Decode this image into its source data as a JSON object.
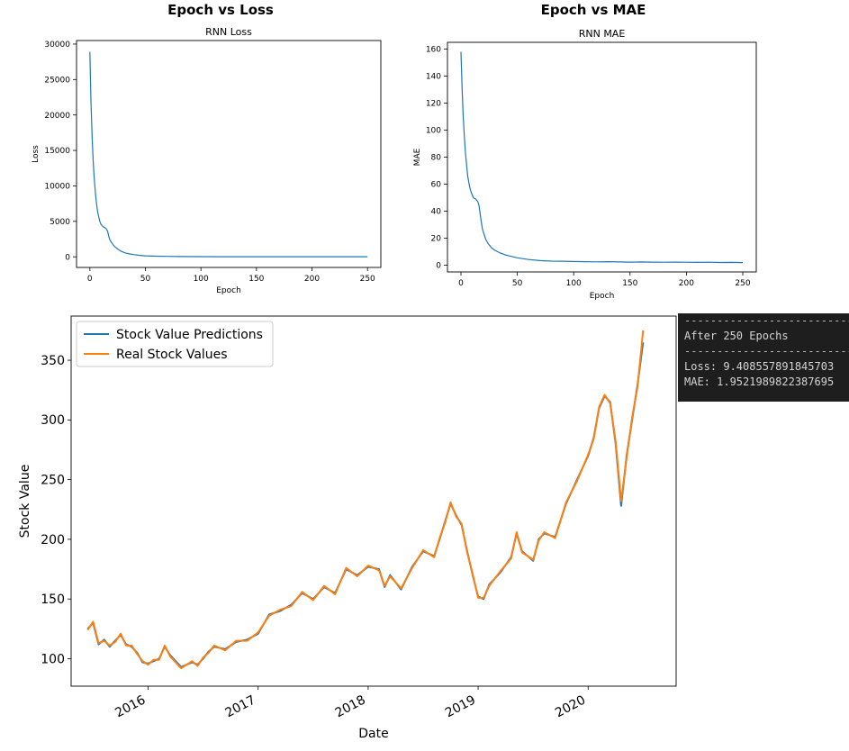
{
  "section_titles": {
    "loss": "Epoch vs Loss",
    "mae": "Epoch vs MAE"
  },
  "terminal": {
    "separator": "------------------------------------------",
    "header": "After 250 Epochs",
    "loss_line": "Loss: 9.408557891845703",
    "mae_line": "MAE: 1.9521989822387695"
  },
  "chart_data": [
    {
      "type": "line",
      "title": "RNN Loss",
      "xlabel": "Epoch",
      "ylabel": "Loss",
      "xlim": [
        -12,
        262
      ],
      "ylim": [
        -1500,
        30500
      ],
      "xticks": [
        0,
        50,
        100,
        150,
        200,
        250
      ],
      "yticks": [
        0,
        5000,
        10000,
        15000,
        20000,
        25000,
        30000
      ],
      "grid": false,
      "color": "#1f77b4",
      "series": [
        {
          "x": [
            0,
            1,
            2,
            3,
            4,
            5,
            6,
            7,
            8,
            9,
            10,
            11,
            12,
            13,
            14,
            15,
            16,
            17,
            18,
            20,
            22,
            25,
            28,
            32,
            36,
            40,
            45,
            50,
            60,
            70,
            80,
            100,
            120,
            150,
            200,
            250
          ],
          "y": [
            28900,
            22000,
            17000,
            13500,
            11000,
            9000,
            7500,
            6400,
            5600,
            5000,
            4600,
            4400,
            4250,
            4150,
            4050,
            3900,
            3600,
            2900,
            2400,
            1900,
            1500,
            1100,
            800,
            550,
            400,
            300,
            200,
            140,
            90,
            60,
            40,
            20,
            15,
            10,
            10,
            9.4
          ]
        }
      ]
    },
    {
      "type": "line",
      "title": "RNN MAE",
      "xlabel": "Epoch",
      "ylabel": "MAE",
      "xlim": [
        -12,
        262
      ],
      "ylim": [
        -5,
        165
      ],
      "xticks": [
        0,
        50,
        100,
        150,
        200,
        250
      ],
      "yticks": [
        0,
        20,
        40,
        60,
        80,
        100,
        120,
        140,
        160
      ],
      "grid": false,
      "color": "#1f77b4",
      "series": [
        {
          "x": [
            0,
            1,
            2,
            3,
            4,
            5,
            6,
            7,
            8,
            9,
            10,
            11,
            12,
            13,
            14,
            15,
            16,
            17,
            18,
            19,
            20,
            22,
            24,
            27,
            30,
            35,
            40,
            45,
            50,
            60,
            70,
            80,
            90,
            100,
            110,
            120,
            130,
            140,
            150,
            160,
            170,
            180,
            190,
            200,
            210,
            220,
            230,
            240,
            250
          ],
          "y": [
            158,
            130,
            110,
            95,
            83,
            74,
            66,
            61,
            57,
            54,
            52,
            50,
            49.5,
            49,
            48,
            47,
            44,
            38,
            32,
            27,
            24,
            19,
            16,
            13,
            11,
            9,
            7.5,
            6.5,
            5.5,
            4.2,
            3.4,
            3.0,
            2.9,
            2.7,
            2.6,
            2.5,
            2.6,
            2.4,
            2.3,
            2.4,
            2.3,
            2.2,
            2.3,
            2.2,
            2.1,
            2.2,
            2.0,
            2.1,
            1.95
          ]
        }
      ]
    },
    {
      "type": "line",
      "title": "",
      "xlabel": "Date",
      "ylabel": "Stock Value",
      "xlim": [
        2015.3,
        2020.8
      ],
      "ylim": [
        77,
        387
      ],
      "xticks": [
        2016,
        2017,
        2018,
        2019,
        2020
      ],
      "xticklabels": [
        "2016",
        "2017",
        "2018",
        "2019",
        "2020"
      ],
      "yticks": [
        100,
        150,
        200,
        250,
        300,
        350
      ],
      "grid": false,
      "legend": "top-left",
      "series": [
        {
          "name": "Stock Value Predictions",
          "color": "#1f77b4",
          "x": [
            2015.45,
            2015.5,
            2015.55,
            2015.6,
            2015.65,
            2015.7,
            2015.75,
            2015.8,
            2015.85,
            2015.9,
            2015.95,
            2016.0,
            2016.05,
            2016.1,
            2016.15,
            2016.2,
            2016.3,
            2016.4,
            2016.45,
            2016.5,
            2016.55,
            2016.6,
            2016.7,
            2016.8,
            2016.9,
            2017.0,
            2017.1,
            2017.2,
            2017.3,
            2017.4,
            2017.5,
            2017.6,
            2017.7,
            2017.8,
            2017.9,
            2018.0,
            2018.1,
            2018.15,
            2018.2,
            2018.3,
            2018.4,
            2018.5,
            2018.6,
            2018.65,
            2018.7,
            2018.75,
            2018.8,
            2018.85,
            2018.9,
            2018.95,
            2019.0,
            2019.05,
            2019.1,
            2019.2,
            2019.3,
            2019.35,
            2019.4,
            2019.5,
            2019.55,
            2019.6,
            2019.7,
            2019.8,
            2019.9,
            2020.0,
            2020.05,
            2020.1,
            2020.15,
            2020.2,
            2020.25,
            2020.3,
            2020.35,
            2020.4,
            2020.45,
            2020.5
          ],
          "y": [
            125,
            130,
            112,
            116,
            110,
            115,
            120,
            112,
            110,
            105,
            97,
            96,
            98,
            100,
            110,
            103,
            93,
            97,
            95,
            100,
            106,
            110,
            108,
            114,
            116,
            121,
            137,
            140,
            145,
            155,
            150,
            160,
            155,
            175,
            170,
            177,
            175,
            160,
            170,
            158,
            177,
            190,
            186,
            200,
            215,
            230,
            220,
            212,
            190,
            170,
            152,
            150,
            162,
            172,
            185,
            205,
            190,
            182,
            200,
            205,
            202,
            230,
            250,
            270,
            285,
            310,
            320,
            315,
            280,
            228,
            270,
            300,
            330,
            365
          ]
        },
        {
          "name": "Real Stock Values",
          "color": "#ff7f0e",
          "x": [
            2015.45,
            2015.5,
            2015.55,
            2015.6,
            2015.65,
            2015.7,
            2015.75,
            2015.8,
            2015.85,
            2015.9,
            2015.95,
            2016.0,
            2016.05,
            2016.1,
            2016.15,
            2016.2,
            2016.3,
            2016.4,
            2016.45,
            2016.5,
            2016.55,
            2016.6,
            2016.7,
            2016.8,
            2016.9,
            2017.0,
            2017.1,
            2017.2,
            2017.3,
            2017.4,
            2017.5,
            2017.6,
            2017.7,
            2017.8,
            2017.9,
            2018.0,
            2018.1,
            2018.15,
            2018.2,
            2018.3,
            2018.4,
            2018.5,
            2018.6,
            2018.65,
            2018.7,
            2018.75,
            2018.8,
            2018.85,
            2018.9,
            2018.95,
            2019.0,
            2019.05,
            2019.1,
            2019.2,
            2019.3,
            2019.35,
            2019.4,
            2019.5,
            2019.55,
            2019.6,
            2019.7,
            2019.8,
            2019.9,
            2020.0,
            2020.05,
            2020.1,
            2020.15,
            2020.2,
            2020.25,
            2020.3,
            2020.35,
            2020.4,
            2020.45,
            2020.5
          ],
          "y": [
            124,
            131,
            113,
            115,
            111,
            114,
            121,
            111,
            111,
            104,
            98,
            95,
            99,
            99,
            111,
            102,
            92,
            98,
            94,
            101,
            105,
            111,
            107,
            115,
            115,
            122,
            136,
            141,
            144,
            156,
            149,
            161,
            154,
            176,
            169,
            178,
            174,
            161,
            169,
            159,
            176,
            191,
            185,
            201,
            214,
            231,
            219,
            213,
            189,
            171,
            151,
            151,
            161,
            173,
            184,
            206,
            189,
            183,
            199,
            206,
            201,
            231,
            249,
            271,
            284,
            311,
            321,
            314,
            282,
            232,
            268,
            302,
            328,
            375
          ]
        }
      ]
    }
  ]
}
